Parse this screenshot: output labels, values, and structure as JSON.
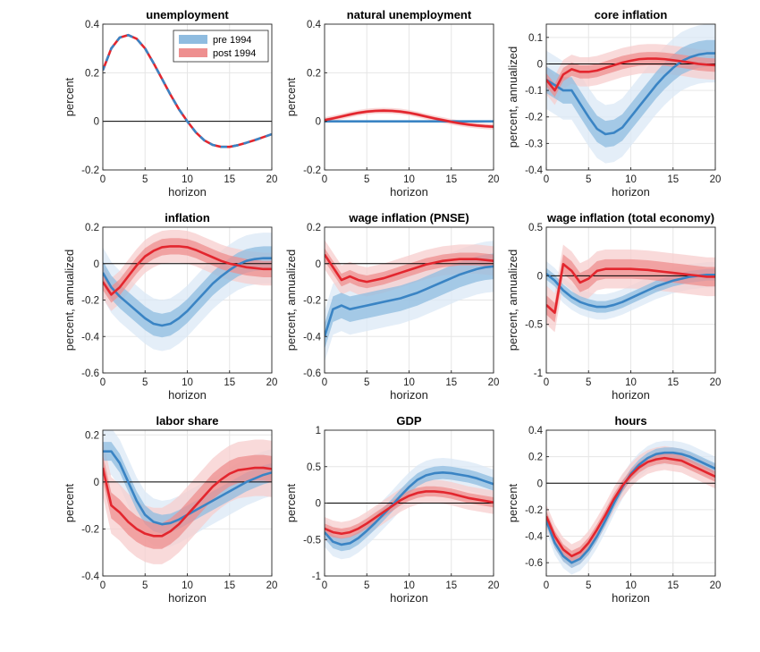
{
  "colors": {
    "pre_line": "#3a84c4",
    "pre_band_outer": "#dbe8f5",
    "pre_band_inner": "#8fbce0",
    "post_line": "#e3262e",
    "post_band_outer": "#f7cdcd",
    "post_band_inner": "#ee8f8f",
    "grid": "#e6e6e6",
    "zero": "#000000"
  },
  "legend": {
    "items": [
      "pre 1994",
      "post 1994"
    ]
  },
  "chart_data": [
    {
      "type": "line",
      "title": "unemployment",
      "xlabel": "horizon",
      "ylabel": "percent",
      "xlim": [
        0,
        20
      ],
      "ylim": [
        -0.2,
        0.4
      ],
      "xticks": [
        0,
        5,
        10,
        15,
        20
      ],
      "xticklabels": [
        "0",
        "5",
        "10",
        "15",
        "20"
      ],
      "yticks": [
        -0.2,
        0,
        0.2,
        0.4
      ],
      "yticklabels": [
        "-0.2",
        "0",
        "0.2",
        "0.4"
      ],
      "grid": true,
      "legend": "top-right",
      "x": [
        0,
        1,
        2,
        3,
        4,
        5,
        6,
        7,
        8,
        9,
        10,
        11,
        12,
        13,
        14,
        15,
        16,
        17,
        18,
        19,
        20
      ],
      "series": [
        {
          "name": "pre 1994",
          "band_outer": 0,
          "band_inner": 0,
          "values": [
            0.21,
            0.3,
            0.345,
            0.355,
            0.34,
            0.3,
            0.24,
            0.175,
            0.11,
            0.05,
            0.0,
            -0.045,
            -0.078,
            -0.097,
            -0.105,
            -0.105,
            -0.098,
            -0.088,
            -0.077,
            -0.065,
            -0.053
          ]
        },
        {
          "name": "post 1994",
          "band_outer": 0,
          "band_inner": 0,
          "dashed": true,
          "values": [
            0.21,
            0.3,
            0.345,
            0.355,
            0.34,
            0.3,
            0.24,
            0.175,
            0.11,
            0.05,
            0.0,
            -0.045,
            -0.078,
            -0.097,
            -0.105,
            -0.105,
            -0.098,
            -0.088,
            -0.077,
            -0.065,
            -0.053
          ]
        }
      ]
    },
    {
      "type": "line",
      "title": "natural unemployment",
      "xlabel": "horizon",
      "ylabel": "percent",
      "xlim": [
        0,
        20
      ],
      "ylim": [
        -0.2,
        0.4
      ],
      "xticks": [
        0,
        5,
        10,
        15,
        20
      ],
      "xticklabels": [
        "0",
        "5",
        "10",
        "15",
        "20"
      ],
      "yticks": [
        -0.2,
        0,
        0.2,
        0.4
      ],
      "yticklabels": [
        "-0.2",
        "0",
        "0.2",
        "0.4"
      ],
      "grid": true,
      "x": [
        0,
        1,
        2,
        3,
        4,
        5,
        6,
        7,
        8,
        9,
        10,
        11,
        12,
        13,
        14,
        15,
        16,
        17,
        18,
        19,
        20
      ],
      "series": [
        {
          "name": "pre 1994",
          "band_outer": 0.004,
          "band_inner": 0.002,
          "values": [
            0,
            0,
            0,
            0,
            0,
            0,
            0,
            0,
            0,
            0,
            0,
            0,
            0,
            0,
            0,
            0,
            0,
            0,
            0,
            0,
            0
          ]
        },
        {
          "name": "post 1994",
          "band_outer": 0.012,
          "band_inner": 0.006,
          "values": [
            0.005,
            0.012,
            0.02,
            0.028,
            0.035,
            0.04,
            0.043,
            0.044,
            0.043,
            0.04,
            0.035,
            0.028,
            0.02,
            0.012,
            0.005,
            -0.002,
            -0.008,
            -0.013,
            -0.017,
            -0.02,
            -0.022
          ]
        }
      ]
    },
    {
      "type": "line",
      "title": "core inflation",
      "xlabel": "horizon",
      "ylabel": "percent, annualized",
      "xlim": [
        0,
        20
      ],
      "ylim": [
        -0.4,
        0.15
      ],
      "xticks": [
        0,
        5,
        10,
        15,
        20
      ],
      "xticklabels": [
        "0",
        "5",
        "10",
        "15",
        "20"
      ],
      "yticks": [
        -0.4,
        -0.3,
        -0.2,
        -0.1,
        0,
        0.1
      ],
      "yticklabels": [
        "-0.4",
        "-0.3",
        "-0.2",
        "-0.1",
        "0",
        "0.1"
      ],
      "grid": true,
      "x": [
        0,
        1,
        2,
        3,
        4,
        5,
        6,
        7,
        8,
        9,
        10,
        11,
        12,
        13,
        14,
        15,
        16,
        17,
        18,
        19,
        20
      ],
      "series": [
        {
          "name": "pre 1994",
          "band_outer": 0.11,
          "band_inner": 0.05,
          "values": [
            -0.06,
            -0.08,
            -0.1,
            -0.1,
            -0.15,
            -0.2,
            -0.245,
            -0.265,
            -0.26,
            -0.24,
            -0.2,
            -0.16,
            -0.12,
            -0.08,
            -0.045,
            -0.015,
            0.01,
            0.025,
            0.035,
            0.04,
            0.04
          ]
        },
        {
          "name": "post 1994",
          "band_outer": 0.055,
          "band_inner": 0.025,
          "values": [
            -0.06,
            -0.1,
            -0.04,
            -0.02,
            -0.03,
            -0.03,
            -0.025,
            -0.015,
            -0.005,
            0.005,
            0.012,
            0.018,
            0.02,
            0.02,
            0.018,
            0.014,
            0.01,
            0.005,
            0.0,
            -0.003,
            -0.005
          ]
        }
      ]
    },
    {
      "type": "line",
      "title": "inflation",
      "xlabel": "horizon",
      "ylabel": "percent, annualized",
      "xlim": [
        0,
        20
      ],
      "ylim": [
        -0.6,
        0.2
      ],
      "xticks": [
        0,
        5,
        10,
        15,
        20
      ],
      "xticklabels": [
        "0",
        "5",
        "10",
        "15",
        "20"
      ],
      "yticks": [
        -0.6,
        -0.4,
        -0.2,
        0,
        0.2
      ],
      "yticklabels": [
        "-0.6",
        "-0.4",
        "-0.2",
        "0",
        "0.2"
      ],
      "grid": true,
      "x": [
        0,
        1,
        2,
        3,
        4,
        5,
        6,
        7,
        8,
        9,
        10,
        11,
        12,
        13,
        14,
        15,
        16,
        17,
        18,
        19,
        20
      ],
      "series": [
        {
          "name": "pre 1994",
          "band_outer": 0.14,
          "band_inner": 0.065,
          "values": [
            -0.05,
            -0.13,
            -0.18,
            -0.22,
            -0.26,
            -0.3,
            -0.33,
            -0.34,
            -0.33,
            -0.3,
            -0.26,
            -0.21,
            -0.16,
            -0.11,
            -0.07,
            -0.035,
            -0.005,
            0.015,
            0.025,
            0.03,
            0.03
          ]
        },
        {
          "name": "post 1994",
          "band_outer": 0.09,
          "band_inner": 0.045,
          "values": [
            -0.1,
            -0.17,
            -0.13,
            -0.07,
            -0.01,
            0.04,
            0.07,
            0.09,
            0.095,
            0.095,
            0.09,
            0.075,
            0.055,
            0.035,
            0.015,
            0.0,
            -0.01,
            -0.02,
            -0.025,
            -0.03,
            -0.03
          ]
        }
      ]
    },
    {
      "type": "line",
      "title": "wage inflation (PNSE)",
      "xlabel": "horizon",
      "ylabel": "percent, annualized",
      "xlim": [
        0,
        20
      ],
      "ylim": [
        -0.6,
        0.2
      ],
      "xticks": [
        0,
        5,
        10,
        15,
        20
      ],
      "xticklabels": [
        "0",
        "5",
        "10",
        "15",
        "20"
      ],
      "yticks": [
        -0.6,
        -0.4,
        -0.2,
        0,
        0.2
      ],
      "yticklabels": [
        "-0.6",
        "-0.4",
        "-0.2",
        "0",
        "0.2"
      ],
      "grid": true,
      "x": [
        0,
        1,
        2,
        3,
        4,
        5,
        6,
        7,
        8,
        9,
        10,
        11,
        12,
        13,
        14,
        15,
        16,
        17,
        18,
        19,
        20
      ],
      "series": [
        {
          "name": "pre 1994",
          "band_outer": 0.14,
          "band_inner": 0.07,
          "values": [
            -0.4,
            -0.25,
            -0.23,
            -0.25,
            -0.24,
            -0.23,
            -0.22,
            -0.21,
            -0.2,
            -0.19,
            -0.175,
            -0.16,
            -0.14,
            -0.12,
            -0.1,
            -0.08,
            -0.06,
            -0.045,
            -0.03,
            -0.02,
            -0.015
          ]
        },
        {
          "name": "post 1994",
          "band_outer": 0.08,
          "band_inner": 0.035,
          "values": [
            0.05,
            -0.02,
            -0.09,
            -0.07,
            -0.09,
            -0.1,
            -0.09,
            -0.08,
            -0.065,
            -0.05,
            -0.035,
            -0.02,
            -0.005,
            0.005,
            0.015,
            0.02,
            0.025,
            0.025,
            0.025,
            0.02,
            0.015
          ]
        }
      ]
    },
    {
      "type": "line",
      "title": "wage inflation (total economy)",
      "xlabel": "horizon",
      "ylabel": "percent, annualized",
      "xlim": [
        0,
        20
      ],
      "ylim": [
        -1,
        0.5
      ],
      "xticks": [
        0,
        5,
        10,
        15,
        20
      ],
      "xticklabels": [
        "0",
        "5",
        "10",
        "15",
        "20"
      ],
      "yticks": [
        -1,
        -0.5,
        0,
        0.5
      ],
      "yticklabels": [
        "-1",
        "-0.5",
        "0",
        "0.5"
      ],
      "grid": true,
      "x": [
        0,
        1,
        2,
        3,
        4,
        5,
        6,
        7,
        8,
        9,
        10,
        11,
        12,
        13,
        14,
        15,
        16,
        17,
        18,
        19,
        20
      ],
      "series": [
        {
          "name": "pre 1994",
          "band_outer": 0.13,
          "band_inner": 0.06,
          "values": [
            0.02,
            -0.05,
            -0.15,
            -0.22,
            -0.27,
            -0.3,
            -0.32,
            -0.32,
            -0.3,
            -0.27,
            -0.23,
            -0.19,
            -0.15,
            -0.11,
            -0.08,
            -0.05,
            -0.03,
            -0.01,
            0.0,
            0.01,
            0.01
          ]
        },
        {
          "name": "post 1994",
          "band_outer": 0.2,
          "band_inner": 0.1,
          "values": [
            -0.3,
            -0.38,
            0.12,
            0.05,
            -0.07,
            -0.03,
            0.05,
            0.07,
            0.07,
            0.07,
            0.07,
            0.065,
            0.06,
            0.05,
            0.04,
            0.03,
            0.02,
            0.01,
            0.0,
            -0.01,
            -0.01
          ]
        }
      ]
    },
    {
      "type": "line",
      "title": "labor share",
      "xlabel": "horizon",
      "ylabel": "percent",
      "xlim": [
        0,
        20
      ],
      "ylim": [
        -0.4,
        0.22
      ],
      "xticks": [
        0,
        5,
        10,
        15,
        20
      ],
      "xticklabels": [
        "0",
        "5",
        "10",
        "15",
        "20"
      ],
      "yticks": [
        -0.4,
        -0.2,
        0,
        0.2
      ],
      "yticklabels": [
        "-0.4",
        "-0.2",
        "0",
        "0.2"
      ],
      "grid": true,
      "x": [
        0,
        1,
        2,
        3,
        4,
        5,
        6,
        7,
        8,
        9,
        10,
        11,
        12,
        13,
        14,
        15,
        16,
        17,
        18,
        19,
        20
      ],
      "series": [
        {
          "name": "pre 1994",
          "band_outer": 0.1,
          "band_inner": 0.04,
          "values": [
            0.13,
            0.13,
            0.08,
            0.0,
            -0.08,
            -0.14,
            -0.17,
            -0.18,
            -0.175,
            -0.16,
            -0.14,
            -0.12,
            -0.1,
            -0.08,
            -0.06,
            -0.04,
            -0.02,
            0.0,
            0.015,
            0.03,
            0.04
          ]
        },
        {
          "name": "post 1994",
          "band_outer": 0.12,
          "band_inner": 0.055,
          "values": [
            0.06,
            -0.1,
            -0.13,
            -0.17,
            -0.2,
            -0.22,
            -0.23,
            -0.23,
            -0.21,
            -0.18,
            -0.14,
            -0.1,
            -0.06,
            -0.02,
            0.01,
            0.035,
            0.05,
            0.055,
            0.06,
            0.06,
            0.055
          ]
        }
      ]
    },
    {
      "type": "line",
      "title": "GDP",
      "xlabel": "horizon",
      "ylabel": "percent",
      "xlim": [
        0,
        20
      ],
      "ylim": [
        -1,
        1
      ],
      "xticks": [
        0,
        5,
        10,
        15,
        20
      ],
      "xticklabels": [
        "0",
        "5",
        "10",
        "15",
        "20"
      ],
      "yticks": [
        -1,
        -0.5,
        0,
        0.5,
        1
      ],
      "yticklabels": [
        "-1",
        "-0.5",
        "0",
        "0.5",
        "1"
      ],
      "grid": true,
      "x": [
        0,
        1,
        2,
        3,
        4,
        5,
        6,
        7,
        8,
        9,
        10,
        11,
        12,
        13,
        14,
        15,
        16,
        17,
        18,
        19,
        20
      ],
      "series": [
        {
          "name": "pre 1994",
          "band_outer": 0.2,
          "band_inner": 0.09,
          "values": [
            -0.4,
            -0.53,
            -0.57,
            -0.55,
            -0.48,
            -0.38,
            -0.27,
            -0.15,
            -0.03,
            0.1,
            0.22,
            0.32,
            0.38,
            0.41,
            0.42,
            0.41,
            0.39,
            0.37,
            0.34,
            0.3,
            0.26
          ]
        },
        {
          "name": "post 1994",
          "band_outer": 0.16,
          "band_inner": 0.07,
          "values": [
            -0.35,
            -0.4,
            -0.42,
            -0.4,
            -0.35,
            -0.28,
            -0.2,
            -0.12,
            -0.04,
            0.04,
            0.1,
            0.14,
            0.16,
            0.16,
            0.15,
            0.13,
            0.1,
            0.07,
            0.05,
            0.03,
            0.01
          ]
        }
      ]
    },
    {
      "type": "line",
      "title": "hours",
      "xlabel": "horizon",
      "ylabel": "percent",
      "xlim": [
        0,
        20
      ],
      "ylim": [
        -0.7,
        0.4
      ],
      "xticks": [
        0,
        5,
        10,
        15,
        20
      ],
      "xticklabels": [
        "0",
        "5",
        "10",
        "15",
        "20"
      ],
      "yticks": [
        -0.6,
        -0.4,
        -0.2,
        0,
        0.2,
        0.4
      ],
      "yticklabels": [
        "-0.6",
        "-0.4",
        "-0.2",
        "0",
        "0.2",
        "0.4"
      ],
      "grid": true,
      "x": [
        0,
        1,
        2,
        3,
        4,
        5,
        6,
        7,
        8,
        9,
        10,
        11,
        12,
        13,
        14,
        15,
        16,
        17,
        18,
        19,
        20
      ],
      "series": [
        {
          "name": "pre 1994",
          "band_outer": 0.09,
          "band_inner": 0.04,
          "values": [
            -0.28,
            -0.45,
            -0.55,
            -0.6,
            -0.57,
            -0.5,
            -0.4,
            -0.28,
            -0.15,
            -0.03,
            0.07,
            0.14,
            0.19,
            0.22,
            0.23,
            0.23,
            0.22,
            0.2,
            0.17,
            0.14,
            0.11
          ]
        },
        {
          "name": "post 1994",
          "band_outer": 0.09,
          "band_inner": 0.04,
          "values": [
            -0.25,
            -0.4,
            -0.5,
            -0.55,
            -0.52,
            -0.45,
            -0.35,
            -0.24,
            -0.12,
            -0.02,
            0.06,
            0.12,
            0.16,
            0.18,
            0.19,
            0.18,
            0.17,
            0.14,
            0.11,
            0.08,
            0.05
          ]
        }
      ]
    }
  ]
}
